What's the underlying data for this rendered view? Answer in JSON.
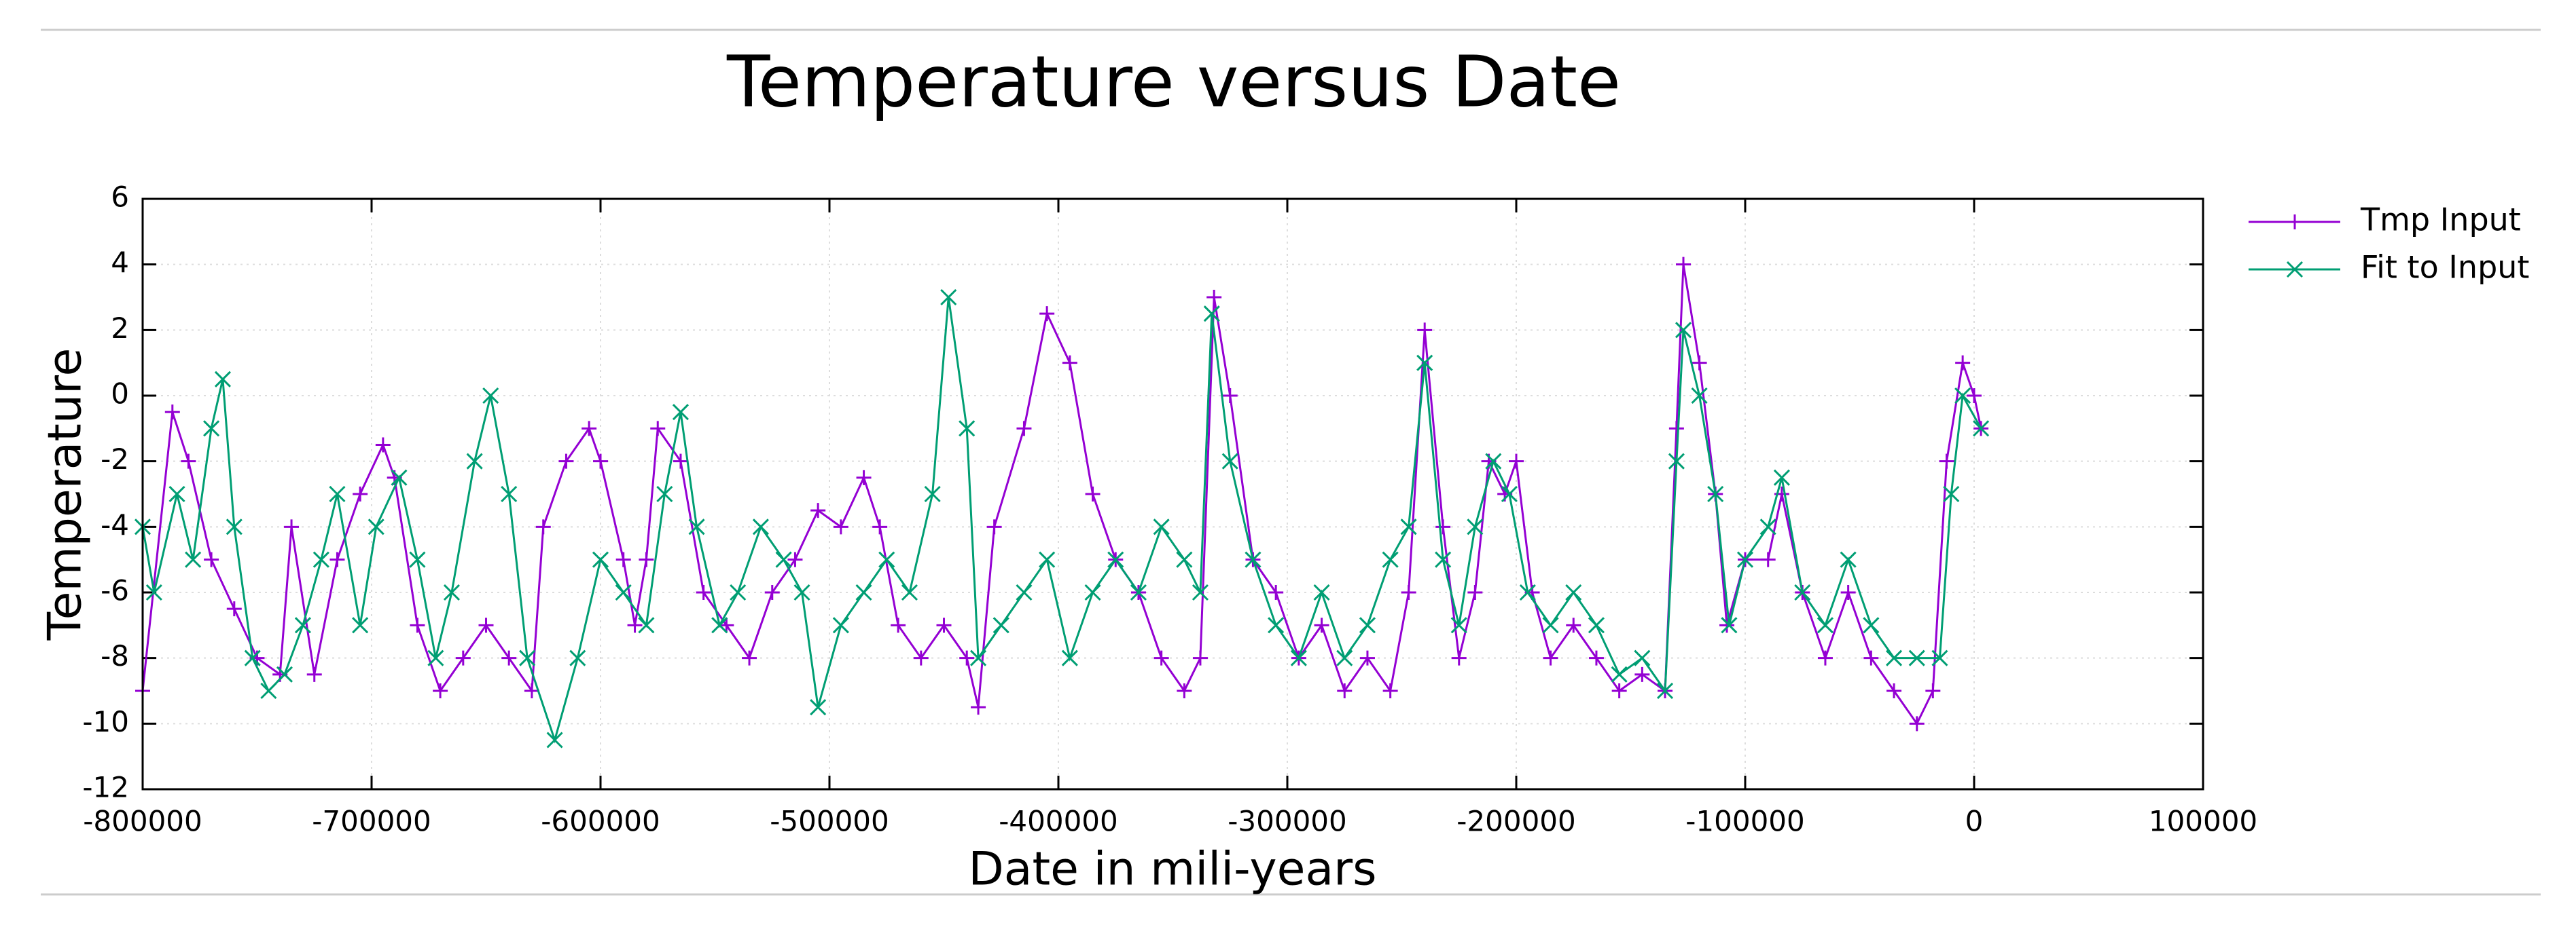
{
  "chart_data": {
    "type": "line",
    "title": "Temperature versus Date",
    "xlabel": "Date in mili-years",
    "ylabel": "Temperature",
    "xlim": [
      -800000,
      100000
    ],
    "ylim": [
      -12,
      6
    ],
    "xticks": [
      -800000,
      -700000,
      -600000,
      -500000,
      -400000,
      -300000,
      -200000,
      -100000,
      0,
      100000
    ],
    "yticks": [
      -12,
      -10,
      -8,
      -6,
      -4,
      -2,
      0,
      2,
      4,
      6
    ],
    "grid": true,
    "legend": "outside-right",
    "series": [
      {
        "name": "Tmp Input",
        "color": "#9400d3",
        "marker": "plus",
        "x": [
          -800000,
          -787000,
          -780000,
          -770000,
          -760000,
          -750000,
          -740000,
          -735000,
          -725000,
          -715000,
          -705000,
          -695000,
          -690000,
          -680000,
          -670000,
          -660000,
          -650000,
          -640000,
          -630000,
          -625000,
          -615000,
          -605000,
          -600000,
          -590000,
          -585000,
          -580000,
          -575000,
          -565000,
          -555000,
          -545000,
          -535000,
          -525000,
          -515000,
          -505000,
          -495000,
          -485000,
          -478000,
          -470000,
          -460000,
          -450000,
          -440000,
          -435000,
          -428000,
          -415000,
          -405000,
          -395000,
          -385000,
          -375000,
          -365000,
          -355000,
          -345000,
          -338000,
          -332000,
          -325000,
          -315000,
          -305000,
          -295000,
          -285000,
          -275000,
          -265000,
          -255000,
          -247000,
          -240000,
          -232000,
          -225000,
          -218000,
          -212000,
          -205000,
          -200000,
          -193000,
          -185000,
          -175000,
          -165000,
          -155000,
          -145000,
          -135000,
          -130000,
          -127000,
          -120000,
          -113000,
          -108000,
          -100000,
          -90000,
          -84000,
          -75000,
          -65000,
          -55000,
          -45000,
          -35000,
          -25000,
          -18000,
          -12000,
          -5000,
          0,
          3000
        ],
        "values": [
          -9,
          -0.5,
          -2,
          -5,
          -6.5,
          -8,
          -8.5,
          -4,
          -8.5,
          -5,
          -3,
          -1.5,
          -2.5,
          -7,
          -9,
          -8,
          -7,
          -8,
          -9,
          -4,
          -2,
          -1,
          -2,
          -5,
          -7,
          -5,
          -1,
          -2,
          -6,
          -7,
          -8,
          -6,
          -5,
          -3.5,
          -4,
          -2.5,
          -4,
          -7,
          -8,
          -7,
          -8,
          -9.5,
          -4,
          -1,
          2.5,
          1,
          -3,
          -5,
          -6,
          -8,
          -9,
          -8,
          3,
          0,
          -5,
          -6,
          -8,
          -7,
          -9,
          -8,
          -9,
          -6,
          2,
          -4,
          -8,
          -6,
          -2,
          -3,
          -2,
          -6,
          -8,
          -7,
          -8,
          -9,
          -8.5,
          -9,
          -1,
          4,
          1,
          -3,
          -7,
          -5,
          -5,
          -3,
          -6,
          -8,
          -6,
          -8,
          -9,
          -10,
          -9,
          -2,
          1,
          0,
          -1
        ]
      },
      {
        "name": "Fit to Input",
        "color": "#009e73",
        "marker": "cross",
        "x": [
          -800000,
          -795000,
          -785000,
          -778000,
          -770000,
          -765000,
          -760000,
          -752000,
          -745000,
          -738000,
          -730000,
          -722000,
          -715000,
          -705000,
          -698000,
          -688000,
          -680000,
          -672000,
          -665000,
          -655000,
          -648000,
          -640000,
          -632000,
          -620000,
          -610000,
          -600000,
          -590000,
          -580000,
          -572000,
          -565000,
          -558000,
          -548000,
          -540000,
          -530000,
          -520000,
          -512000,
          -505000,
          -495000,
          -485000,
          -475000,
          -465000,
          -455000,
          -448000,
          -440000,
          -435000,
          -425000,
          -415000,
          -405000,
          -395000,
          -385000,
          -375000,
          -365000,
          -355000,
          -345000,
          -338000,
          -333000,
          -325000,
          -315000,
          -305000,
          -295000,
          -285000,
          -275000,
          -265000,
          -255000,
          -247000,
          -240000,
          -232000,
          -225000,
          -218000,
          -210000,
          -203000,
          -195000,
          -185000,
          -175000,
          -165000,
          -155000,
          -145000,
          -135000,
          -130000,
          -127000,
          -120000,
          -113000,
          -107000,
          -100000,
          -90000,
          -84000,
          -75000,
          -65000,
          -55000,
          -45000,
          -35000,
          -25000,
          -15000,
          -10000,
          -5000,
          3000
        ],
        "values": [
          -4,
          -6,
          -3,
          -5,
          -1,
          0.5,
          -4,
          -8,
          -9,
          -8.5,
          -7,
          -5,
          -3,
          -7,
          -4,
          -2.5,
          -5,
          -8,
          -6,
          -2,
          0,
          -3,
          -8,
          -10.5,
          -8,
          -5,
          -6,
          -7,
          -3,
          -0.5,
          -4,
          -7,
          -6,
          -4,
          -5,
          -6,
          -9.5,
          -7,
          -6,
          -5,
          -6,
          -3,
          3,
          -1,
          -8,
          -7,
          -6,
          -5,
          -8,
          -6,
          -5,
          -6,
          -4,
          -5,
          -6,
          2.5,
          -2,
          -5,
          -7,
          -8,
          -6,
          -8,
          -7,
          -5,
          -4,
          1,
          -5,
          -7,
          -4,
          -2,
          -3,
          -6,
          -7,
          -6,
          -7,
          -8.5,
          -8,
          -9,
          -2,
          2,
          0,
          -3,
          -7,
          -5,
          -4,
          -2.5,
          -6,
          -7,
          -5,
          -7,
          -8,
          -8,
          -8,
          -3,
          0,
          -1
        ]
      }
    ]
  }
}
